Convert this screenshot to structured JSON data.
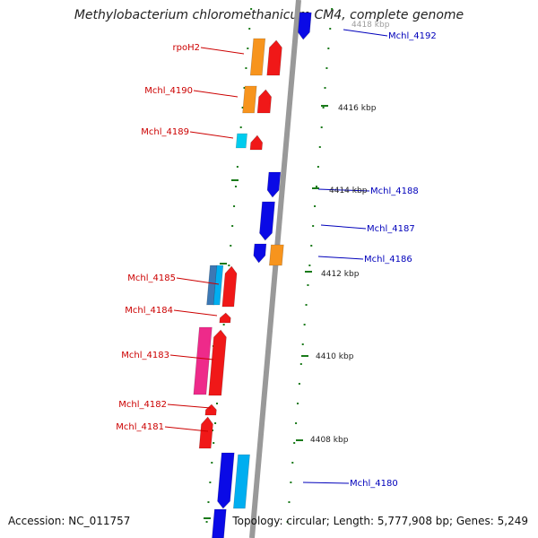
{
  "title": "Methylobacterium chloromethanicum CM4, complete genome",
  "footer": {
    "accession": "Accession: NC_011757",
    "summary": "Topology: circular; Length: 5,777,908 bp; Genes: 5,249"
  },
  "colors": {
    "red": "#f01818",
    "orange": "#f7941d",
    "blue": "#0a0ae6",
    "cyan": "#00ccee",
    "sky": "#00aef0",
    "steel": "#3c78b4",
    "pink": "#ee2a8a",
    "backbone": "#999999",
    "tick": "#1a7a1a",
    "label_left": "#cc0000",
    "label_right": "#0000bb"
  },
  "kbp_labels": [
    "4418 kbp",
    "4416 kbp",
    "4414 kbp",
    "4412 kbp",
    "4410 kbp",
    "4408 kbp"
  ],
  "genes_left": [
    {
      "name": "rpoH2"
    },
    {
      "name": "Mchl_4190"
    },
    {
      "name": "Mchl_4189"
    },
    {
      "name": "Mchl_4185"
    },
    {
      "name": "Mchl_4184"
    },
    {
      "name": "Mchl_4183"
    },
    {
      "name": "Mchl_4182"
    },
    {
      "name": "Mchl_4181"
    }
  ],
  "genes_right": [
    {
      "name": "Mchl_4192"
    },
    {
      "name": "Mchl_4188"
    },
    {
      "name": "Mchl_4187"
    },
    {
      "name": "Mchl_4186"
    },
    {
      "name": "Mchl_4180"
    }
  ]
}
